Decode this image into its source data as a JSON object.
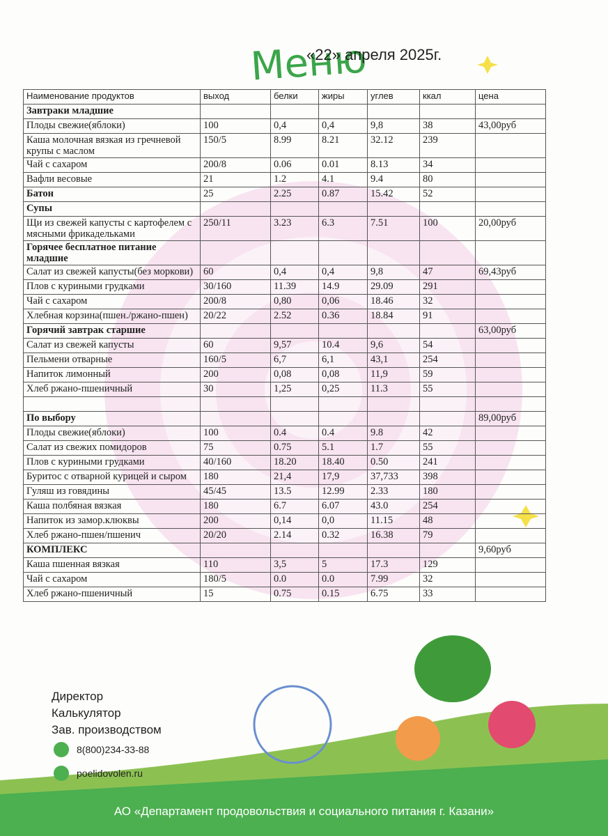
{
  "header": {
    "title": "Меню",
    "date": "«22» апреля 2025г."
  },
  "table": {
    "columns": [
      "Наименование продуктов",
      "выход",
      "белки",
      "жиры",
      "углев",
      "ккал",
      "цена"
    ],
    "rows": [
      {
        "cells": [
          "Завтраки младшие",
          null,
          null,
          null,
          null,
          null,
          null
        ],
        "bold": true
      },
      {
        "cells": [
          "Плоды свежие(яблоки)",
          "100",
          "0,4",
          "0,4",
          "9,8",
          "38",
          "43,00руб"
        ]
      },
      {
        "cells": [
          "Каша молочная вязкая из гречневой крупы с маслом",
          "150/5",
          "8.99",
          "8.21",
          "32.12",
          "239",
          null
        ]
      },
      {
        "cells": [
          "Чай с сахаром",
          "200/8",
          "0.06",
          "0.01",
          "8.13",
          "34",
          null
        ]
      },
      {
        "cells": [
          "Вафли весовые",
          "21",
          "1.2",
          "4.1",
          "9.4",
          "80",
          null
        ]
      },
      {
        "cells": [
          "Батон",
          "25",
          "2.25",
          "0.87",
          "15.42",
          "52",
          null
        ],
        "bold": true
      },
      {
        "cells": [
          "Супы",
          null,
          null,
          null,
          null,
          null,
          null
        ],
        "bold": true
      },
      {
        "cells": [
          "Щи из свежей капусты с картофелем с мясными фрикадельками",
          "250/11",
          "3.23",
          "6.3",
          "7.51",
          "100",
          "20,00руб"
        ]
      },
      {
        "cells": [
          "Горячее бесплатное питание младшие",
          null,
          null,
          null,
          null,
          null,
          null
        ],
        "bold": true
      },
      {
        "cells": [
          "Салат из свежей капусты(без моркови)",
          "60",
          "0,4",
          "0,4",
          "9,8",
          "47",
          "69,43руб"
        ]
      },
      {
        "cells": [
          "Плов с куриными грудками",
          "30/160",
          "11.39",
          "14.9",
          "29.09",
          "291",
          null
        ]
      },
      {
        "cells": [
          "Чай с сахаром",
          "200/8",
          "0,80",
          "0,06",
          "18.46",
          "32",
          null
        ]
      },
      {
        "cells": [
          "Хлебная корзина(пшен./ржано-пшен)",
          "20/22",
          "2.52",
          "0.36",
          "18.84",
          "91",
          null
        ]
      },
      {
        "cells": [
          "Горячий завтрак старшие",
          null,
          null,
          null,
          null,
          null,
          "63,00руб"
        ],
        "bold": true
      },
      {
        "cells": [
          "Салат из свежей капусты",
          "60",
          "9,57",
          "10.4",
          "9,6",
          "54",
          null
        ]
      },
      {
        "cells": [
          "Пельмени отварные",
          "160/5",
          "6,7",
          "6,1",
          "43,1",
          "254",
          null
        ]
      },
      {
        "cells": [
          "Напиток лимонный",
          "200",
          "0,08",
          "0,08",
          "11,9",
          "59",
          null
        ]
      },
      {
        "cells": [
          "Хлеб ржано-пшеничный",
          "30",
          "1,25",
          "0,25",
          "11.3",
          "55",
          null
        ]
      },
      {
        "cells": [
          null,
          null,
          null,
          null,
          null,
          null,
          null
        ]
      },
      {
        "cells": [
          "По выбору",
          null,
          null,
          null,
          null,
          null,
          "89,00руб"
        ],
        "bold": true
      },
      {
        "cells": [
          "Плоды свежие(яблоки)",
          "100",
          "0.4",
          "0.4",
          "9.8",
          "42",
          null
        ]
      },
      {
        "cells": [
          "Салат из свежих помидоров",
          "75",
          "0.75",
          "5.1",
          "1.7",
          "55",
          null
        ]
      },
      {
        "cells": [
          "Плов с куриными грудками",
          "40/160",
          "18.20",
          "18.40",
          "0.50",
          "241",
          null
        ]
      },
      {
        "cells": [
          "Буритос с отварной курицей и сыром",
          "180",
          "21,4",
          "17,9",
          "37,733",
          "398",
          null
        ]
      },
      {
        "cells": [
          "Гуляш из говядины",
          "45/45",
          "13.5",
          "12.99",
          "2.33",
          "180",
          null
        ]
      },
      {
        "cells": [
          "Каша полбяная вязкая",
          "180",
          "6.7",
          "6.07",
          "43.0",
          "254",
          null
        ]
      },
      {
        "cells": [
          "Напиток из замор.клюквы",
          "200",
          "0,14",
          "0,0",
          "11.15",
          "48",
          null
        ]
      },
      {
        "cells": [
          "Хлеб ржано-пшен/пшенич",
          "20/20",
          "2.14",
          "0.32",
          "16.38",
          "79",
          null
        ]
      },
      {
        "cells": [
          "КОМПЛЕКС",
          null,
          null,
          null,
          null,
          null,
          "9,60руб"
        ],
        "bold": true
      },
      {
        "cells": [
          "Каша пшенная вязкая",
          "110",
          "3,5",
          "5",
          "17.3",
          "129",
          null
        ]
      },
      {
        "cells": [
          "Чай с сахаром",
          "180/5",
          "0.0",
          "0.0",
          "7.99",
          "32",
          null
        ]
      },
      {
        "cells": [
          "Хлеб ржано-пшеничный",
          "15",
          "0.75",
          "0.15",
          "6.75",
          "33",
          null
        ]
      }
    ]
  },
  "footer": {
    "roles": [
      "Директор",
      "Калькулятор",
      "Зав. производством"
    ],
    "phone": "8(800)234-33-88",
    "site": "poelidovolen.ru",
    "company": "АО «Департамент продовольствия и социального питания г. Казани»"
  }
}
